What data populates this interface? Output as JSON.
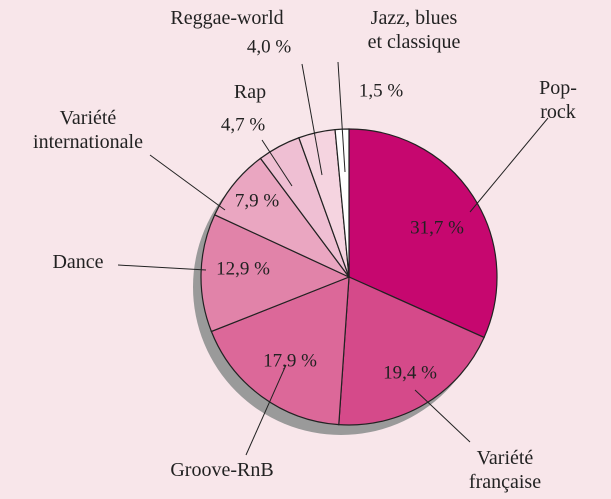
{
  "chart_data": {
    "type": "pie",
    "categories": [
      "Pop-rock",
      "Variété\nfrançaise",
      "Groove-RnB",
      "Dance",
      "Variété\ninternationale",
      "Rap",
      "Reggae-world",
      "Jazz, blues\net classique"
    ],
    "values": [
      31.7,
      19.4,
      17.9,
      12.9,
      7.9,
      4.7,
      4.0,
      1.5
    ],
    "value_labels": [
      "31,7 %",
      "19,4 %",
      "17,9 %",
      "12,9 %",
      "7,9 %",
      "4,7 %",
      "4,0 %",
      "1,5 %"
    ],
    "colors": [
      "#c6076f",
      "#d54a8a",
      "#dc6899",
      "#e183a9",
      "#eaa6c1",
      "#efbfd3",
      "#f5d4e0",
      "#ffffff"
    ]
  }
}
